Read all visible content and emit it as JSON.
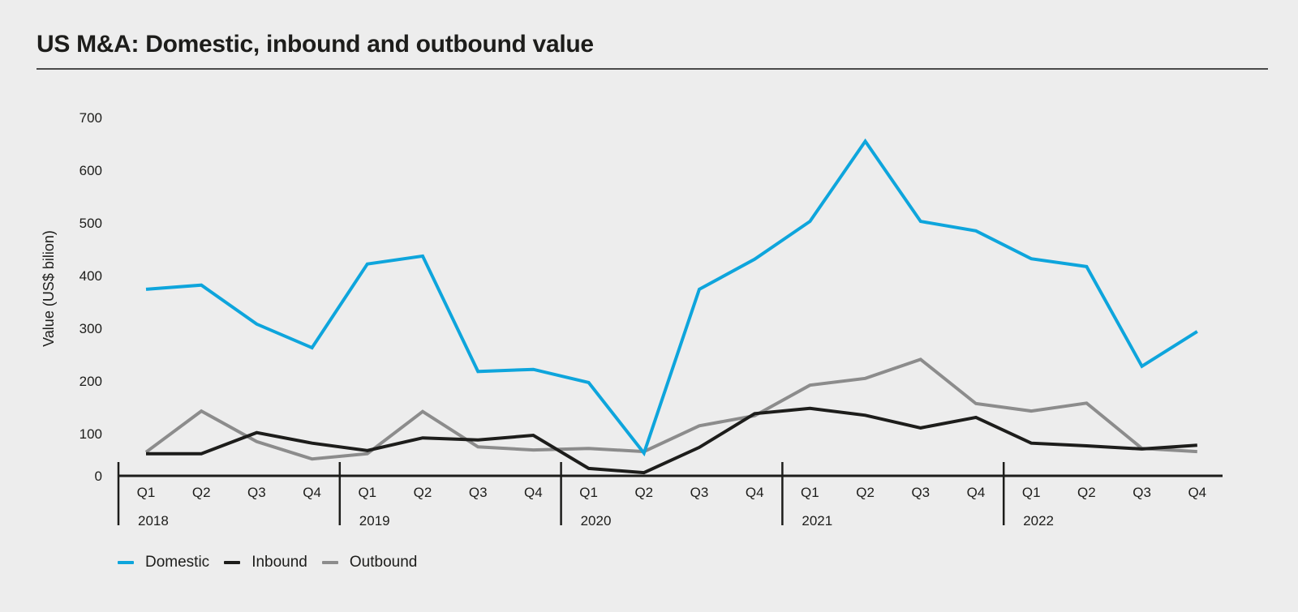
{
  "chart_data": {
    "type": "line",
    "title": "US M&A: Domestic, inbound and outbound value",
    "xlabel": "",
    "ylabel": "Value (US$ bilion)",
    "ylim": [
      0,
      700
    ],
    "yticks": [
      0,
      100,
      200,
      300,
      400,
      500,
      600,
      700
    ],
    "grid": false,
    "legend_position": "bottom-left",
    "years": [
      "2018",
      "2019",
      "2020",
      "2021",
      "2022"
    ],
    "quarters": [
      "Q1",
      "Q2",
      "Q3",
      "Q4"
    ],
    "x": [
      "2018 Q1",
      "2018 Q2",
      "2018 Q3",
      "2018 Q4",
      "2019 Q1",
      "2019 Q2",
      "2019 Q3",
      "2019 Q4",
      "2020 Q1",
      "2020 Q2",
      "2020 Q3",
      "2020 Q4",
      "2021 Q1",
      "2021 Q2",
      "2021 Q3",
      "2021 Q4",
      "2022 Q1",
      "2022 Q2",
      "2022 Q3",
      "2022 Q4"
    ],
    "series": [
      {
        "name": "Domestic",
        "color": "#0ea5dc",
        "values": [
          374,
          382,
          308,
          263,
          422,
          437,
          218,
          222,
          197,
          63,
          374,
          431,
          503,
          655,
          503,
          485,
          432,
          417,
          228,
          294
        ]
      },
      {
        "name": "Inbound",
        "color": "#1d1d1b",
        "values": [
          62,
          62,
          102,
          82,
          68,
          92,
          88,
          97,
          34,
          26,
          74,
          138,
          148,
          135,
          111,
          131,
          82,
          77,
          71,
          78
        ]
      },
      {
        "name": "Outbound",
        "color": "#8c8c8c",
        "values": [
          65,
          143,
          85,
          52,
          62,
          142,
          75,
          69,
          72,
          66,
          115,
          134,
          192,
          205,
          241,
          157,
          143,
          158,
          72,
          66
        ]
      }
    ]
  }
}
